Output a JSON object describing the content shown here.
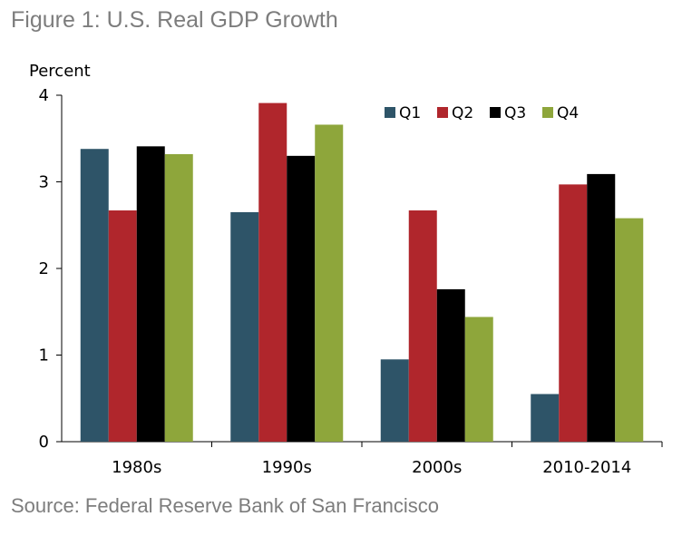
{
  "figure": {
    "title": "Figure 1: U.S. Real GDP Growth",
    "source": "Source: Federal Reserve Bank of San Francisco"
  },
  "chart_data": {
    "type": "bar",
    "title": "Figure 1: U.S. Real GDP Growth",
    "ylabel": "Percent",
    "xlabel": "",
    "ylim": [
      0,
      4
    ],
    "yticks": [
      0,
      1,
      2,
      3,
      4
    ],
    "grid": false,
    "legend_position": "top-right",
    "categories": [
      "1980s",
      "1990s",
      "2000s",
      "2010-2014"
    ],
    "series": [
      {
        "name": "Q1",
        "color": "#2e5468",
        "values": [
          3.38,
          2.65,
          0.95,
          0.55
        ]
      },
      {
        "name": "Q2",
        "color": "#b0262c",
        "values": [
          2.67,
          3.91,
          2.67,
          2.97
        ]
      },
      {
        "name": "Q3",
        "color": "#000000",
        "values": [
          3.41,
          3.3,
          1.76,
          3.09
        ]
      },
      {
        "name": "Q4",
        "color": "#8ea63b",
        "values": [
          3.32,
          3.66,
          1.44,
          2.58
        ]
      }
    ]
  }
}
